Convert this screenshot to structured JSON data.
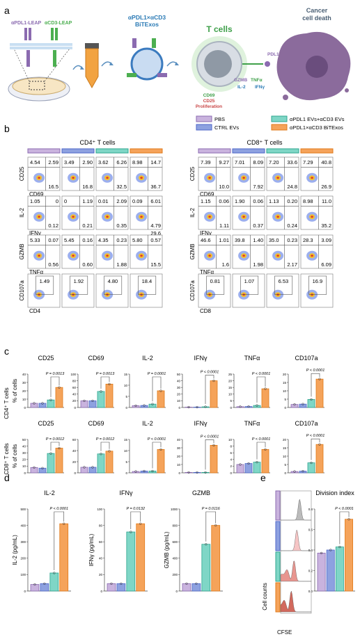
{
  "panels": {
    "a": "a",
    "b": "b",
    "c": "c",
    "d": "d",
    "e": "e"
  },
  "panel_a": {
    "leap1": "αPDL1-LEAP",
    "leap2": "αCD3-LEAP",
    "bitexos1": "αPDL1×αCD3",
    "bitexos2": "BiTExos",
    "tcells": "T cells",
    "cancer1": "Cancer",
    "cancer2": "cell death",
    "pdl1": "PDL1",
    "gzmb": "GZMB",
    "tnfa": "TNFα",
    "il2": "IL-2",
    "ifng": "IFNγ",
    "cd69": "CD69",
    "cd25": "CD25",
    "prolif": "Proliferation",
    "colors": {
      "purple": "#8b6bb0",
      "green": "#4caf50",
      "blue": "#3b7bbf",
      "orange": "#e67e22",
      "teal": "#2a9d8f"
    }
  },
  "legend": {
    "items": [
      {
        "label": "PBS",
        "color": "#c9b3de"
      },
      {
        "label": "CTRL EVs",
        "color": "#8da1e0"
      },
      {
        "label": "αPDL1 EVs+αCD3 EVs",
        "color": "#7fd6c6"
      },
      {
        "label": "αPDL1×αCD3 BiTExos",
        "color": "#f5a35a"
      }
    ]
  },
  "flow": {
    "cd4_title": "CD4⁺ T cells",
    "cd8_title": "CD8⁺ T cells",
    "cd4_rows": [
      {
        "y": "CD25",
        "x": "CD69",
        "vals": [
          [
            "4.54",
            "2.59",
            "16.5"
          ],
          [
            "3.49",
            "2.90",
            "16.8"
          ],
          [
            "3.62",
            "6.26",
            "32.5"
          ],
          [
            "8.98",
            "14.7",
            "36.7"
          ]
        ]
      },
      {
        "y": "IL-2",
        "x": "IFNγ",
        "vals": [
          [
            "1.05",
            "0",
            "0.12"
          ],
          [
            "0",
            "1.19",
            "0.21"
          ],
          [
            "0.01",
            "2.09",
            "0.35"
          ],
          [
            "0.09",
            "6.01",
            "4.79"
          ]
        ],
        "extra": "29.6"
      },
      {
        "y": "GZMB",
        "x": "TNFα",
        "vals": [
          [
            "5.33",
            "0.07",
            "0.56"
          ],
          [
            "5.45",
            "0.16",
            "0.60"
          ],
          [
            "4.35",
            "0.23",
            "1.88"
          ],
          [
            "5.80",
            "0.57",
            "15.5"
          ]
        ]
      },
      {
        "y": "CD107a",
        "x": "CD4",
        "vals": [
          [
            "1.49"
          ],
          [
            "1.92"
          ],
          [
            "4.80"
          ],
          [
            "18.4"
          ]
        ]
      }
    ],
    "cd8_rows": [
      {
        "y": "CD25",
        "x": "CD69",
        "vals": [
          [
            "7.39",
            "9.27",
            "10.0"
          ],
          [
            "7.01",
            "8.09",
            "7.92"
          ],
          [
            "7.20",
            "33.6",
            "24.8"
          ],
          [
            "7.29",
            "40.8",
            "26.9"
          ]
        ]
      },
      {
        "y": "IL-2",
        "x": "IFNγ",
        "vals": [
          [
            "1.15",
            "0.06",
            "1.11"
          ],
          [
            "1.90",
            "0.06",
            "0.37"
          ],
          [
            "1.13",
            "0.20",
            "0.24"
          ],
          [
            "8.98",
            "11.0",
            "35.2"
          ]
        ]
      },
      {
        "y": "GZMB",
        "x": "TNFα",
        "vals": [
          [
            "46.6",
            "1.01",
            "1.6"
          ],
          [
            "39.8",
            "1.40",
            "1.98"
          ],
          [
            "35.0",
            "0.23",
            "2.17"
          ],
          [
            "28.3",
            "3.09",
            "6.09"
          ]
        ]
      },
      {
        "y": "CD107a",
        "x": "CD8",
        "vals": [
          [
            "0.81"
          ],
          [
            "1.07"
          ],
          [
            "6.53"
          ],
          [
            "16.9"
          ]
        ]
      }
    ]
  },
  "chart_data": [
    {
      "type": "bar",
      "group": "CD4",
      "title": "CD25",
      "ylabel": "% of cells",
      "ylim": [
        0,
        40
      ],
      "ticks": [
        "0",
        "10",
        "20",
        "30",
        "40"
      ],
      "values": [
        5,
        5,
        9,
        24
      ],
      "p": "P = 0.0013"
    },
    {
      "type": "bar",
      "group": "CD4",
      "title": "CD69",
      "ylim": [
        0,
        100
      ],
      "ticks": [
        "0",
        "20",
        "40",
        "60",
        "80",
        "100"
      ],
      "values": [
        20,
        20,
        48,
        70
      ],
      "p": "P = 0.0013"
    },
    {
      "type": "bar",
      "group": "CD4",
      "title": "IL-2",
      "ylim": [
        0,
        15
      ],
      "ticks": [
        "0",
        "5",
        "10",
        "15"
      ],
      "values": [
        0.8,
        0.9,
        1.5,
        7.5
      ],
      "p": "P = 0.0001"
    },
    {
      "type": "bar",
      "group": "CD4",
      "title": "IFNγ",
      "ylim": [
        0,
        50
      ],
      "ticks": [
        "0",
        "10",
        "20",
        "30",
        "40",
        "50"
      ],
      "values": [
        0.5,
        0.5,
        1,
        40
      ],
      "p": "P < 0.0001"
    },
    {
      "type": "bar",
      "group": "CD4",
      "title": "TNFα",
      "ylim": [
        0,
        25
      ],
      "ticks": [
        "0",
        "5",
        "10",
        "15",
        "20",
        "25"
      ],
      "values": [
        0.6,
        0.7,
        1.5,
        14
      ],
      "p": "P < 0.0001"
    },
    {
      "type": "bar",
      "group": "CD4",
      "title": "CD107a",
      "ylim": [
        0,
        20
      ],
      "ticks": [
        "0",
        "5",
        "10",
        "15",
        "20"
      ],
      "values": [
        1.8,
        2,
        4.8,
        17
      ],
      "p": "P < 0.0001"
    },
    {
      "type": "bar",
      "group": "CD8",
      "title": "CD25",
      "ylabel": "% of cells",
      "ylim": [
        0,
        50
      ],
      "ticks": [
        "0",
        "10",
        "20",
        "30",
        "40",
        "50"
      ],
      "values": [
        8,
        7,
        29,
        37
      ],
      "p": "P = 0.0012"
    },
    {
      "type": "bar",
      "group": "CD8",
      "title": "CD69",
      "ylim": [
        0,
        60
      ],
      "ticks": [
        "0",
        "20",
        "40",
        "60"
      ],
      "values": [
        10,
        10,
        34,
        39
      ],
      "p": "P = 0.0012"
    },
    {
      "type": "bar",
      "group": "CD8",
      "title": "IL-2",
      "ylim": [
        0,
        15
      ],
      "ticks": [
        "0",
        "5",
        "10",
        "15"
      ],
      "values": [
        0.6,
        0.8,
        0.8,
        10.5
      ],
      "p": "P < 0.0001"
    },
    {
      "type": "bar",
      "group": "CD8",
      "title": "IFNγ",
      "ylim": [
        0,
        40
      ],
      "ticks": [
        "0",
        "10",
        "20",
        "30",
        "40"
      ],
      "values": [
        0.5,
        0.5,
        0.5,
        33
      ],
      "p": "P < 0.0001"
    },
    {
      "type": "bar",
      "group": "CD8",
      "title": "TNFα",
      "ylim": [
        0,
        10
      ],
      "ticks": [
        "0",
        "2",
        "4",
        "6",
        "8",
        "10"
      ],
      "values": [
        2.5,
        2.8,
        3.2,
        7
      ],
      "p": "P < 0.0001"
    },
    {
      "type": "bar",
      "group": "CD8",
      "title": "CD107a",
      "ylim": [
        0,
        20
      ],
      "ticks": [
        "0",
        "5",
        "10",
        "15",
        "20"
      ],
      "values": [
        0.8,
        1,
        6,
        17
      ],
      "p": "P < 0.0001"
    },
    {
      "type": "bar",
      "group": "D",
      "title": "IL-2",
      "ylabel": "IL-2 (pg/mL)",
      "ylim": [
        0,
        500
      ],
      "ticks": [
        "0",
        "100",
        "200",
        "300",
        "400",
        "500"
      ],
      "values": [
        40,
        45,
        110,
        410
      ],
      "p": "P < 0.0001"
    },
    {
      "type": "bar",
      "group": "D",
      "title": "IFNγ",
      "ylabel": "IFNγ (pg/mL)",
      "ylim": [
        0,
        100
      ],
      "ticks": [
        "0",
        "20",
        "40",
        "60",
        "80",
        "100"
      ],
      "values": [
        9,
        9,
        72,
        82
      ],
      "p": "P = 0.0132"
    },
    {
      "type": "bar",
      "group": "D",
      "title": "GZMB",
      "ylabel": "GZMB (pg/mL)",
      "ylim": [
        0,
        1000
      ],
      "ticks": [
        "0",
        "200",
        "400",
        "600",
        "800",
        "1000"
      ],
      "values": [
        90,
        90,
        570,
        800
      ],
      "p": "P = 0.0116"
    },
    {
      "type": "bar",
      "group": "E",
      "title": "Division index",
      "ylim": [
        0,
        0.8
      ],
      "ticks": [
        "0.0",
        "0.2",
        "0.4",
        "0.6",
        "0.8"
      ],
      "values": [
        0.37,
        0.4,
        0.43,
        0.7
      ],
      "p": "P < 0.0001"
    }
  ],
  "row_labels": {
    "cd4": "CD4⁺ T cells",
    "cd8": "CD8⁺ T cells"
  },
  "panel_e": {
    "ylabel": "Cell counts",
    "xlabel": "CFSE"
  },
  "bar_colors": [
    "#c9b3de",
    "#8da1e0",
    "#7fd6c6",
    "#f5a35a"
  ],
  "bar_edges": [
    "#8b6bb0",
    "#4f67c9",
    "#2ea58f",
    "#e07a1a"
  ]
}
